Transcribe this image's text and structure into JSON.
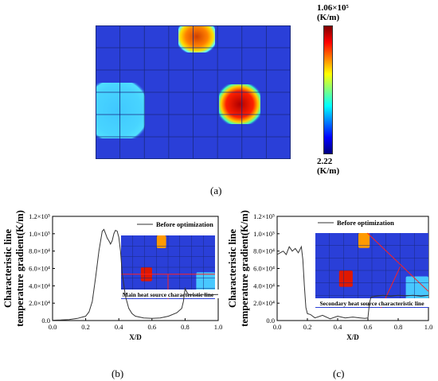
{
  "panels": {
    "a": {
      "label": "(a)"
    },
    "b": {
      "label": "(b)"
    },
    "c": {
      "label": "(c)"
    }
  },
  "colorbar": {
    "max_label": "1.06×10⁵",
    "min_label": "2.22",
    "unit": "(K/m)",
    "colors": [
      "#00007f",
      "#0000ff",
      "#007fff",
      "#00ffff",
      "#7fff7f",
      "#ffff00",
      "#ff7f00",
      "#ff0000",
      "#7f0000"
    ]
  },
  "heatmap": {
    "background": "#2a3fd8",
    "grid_color": "#1a2a80"
  },
  "chart_data": [
    {
      "type": "line",
      "panel": "b",
      "ylabel_line1": "Characteristic line",
      "ylabel_line2": "temperature gradient(K/m)",
      "xlabel": "X/D",
      "xlim": [
        0.0,
        1.0
      ],
      "ylim": [
        0,
        120000
      ],
      "xticks": [
        "0.0",
        "0.2",
        "0.4",
        "0.6",
        "0.8",
        "1.0"
      ],
      "yticks": [
        "0.0",
        "2.0×10⁴",
        "4.0×10⁴",
        "6.0×10⁴",
        "8.0×10⁴",
        "1.0×10⁵",
        "1.2×10⁵"
      ],
      "legend": "Before optimization",
      "inset_caption": "Main heat source characteristic line",
      "series": [
        {
          "name": "Before optimization",
          "x": [
            0.0,
            0.05,
            0.1,
            0.15,
            0.2,
            0.22,
            0.24,
            0.26,
            0.28,
            0.3,
            0.31,
            0.32,
            0.33,
            0.34,
            0.35,
            0.36,
            0.37,
            0.38,
            0.39,
            0.4,
            0.41,
            0.42,
            0.44,
            0.46,
            0.48,
            0.5,
            0.55,
            0.6,
            0.65,
            0.7,
            0.75,
            0.78,
            0.79,
            0.8,
            0.81,
            0.82,
            0.84,
            0.87,
            0.9,
            1.0
          ],
          "y": [
            400,
            600,
            1200,
            2500,
            5000,
            10000,
            22000,
            50000,
            80000,
            103000,
            105000,
            100000,
            95000,
            92000,
            88000,
            92000,
            100000,
            104000,
            103000,
            96000,
            80000,
            55000,
            28000,
            14000,
            8000,
            5000,
            3000,
            2500,
            3000,
            5000,
            9000,
            14000,
            22000,
            37000,
            33000,
            30000,
            29500,
            29000,
            29500,
            30000
          ]
        }
      ]
    },
    {
      "type": "line",
      "panel": "c",
      "ylabel_line1": "Characteristic line",
      "ylabel_line2": "temperature gradient(K/m)",
      "xlabel": "X/D",
      "xlim": [
        0.0,
        1.0
      ],
      "ylim": [
        0,
        120000
      ],
      "xticks": [
        "0.0",
        "0.2",
        "0.4",
        "0.6",
        "0.8",
        "1.0"
      ],
      "yticks": [
        "0.0",
        "2.0×10⁴",
        "4.0×10⁴",
        "6.0×10⁴",
        "8.0×10⁴",
        "1.0×10⁵",
        "1.2×10⁵"
      ],
      "legend": "Before optimization",
      "inset_caption": "Secondary heat source characteristic line",
      "series": [
        {
          "name": "Before optimization",
          "x": [
            0.0,
            0.02,
            0.04,
            0.06,
            0.08,
            0.1,
            0.12,
            0.14,
            0.16,
            0.17,
            0.18,
            0.19,
            0.2,
            0.22,
            0.25,
            0.3,
            0.35,
            0.4,
            0.45,
            0.5,
            0.55,
            0.58,
            0.6,
            0.61,
            0.62,
            0.65,
            0.7,
            0.75,
            0.8,
            0.85,
            0.9,
            0.95,
            1.0
          ],
          "y": [
            76000,
            78000,
            80000,
            76000,
            85000,
            80000,
            83000,
            78000,
            85000,
            70000,
            40000,
            15000,
            8000,
            7000,
            3000,
            6000,
            2000,
            5000,
            3000,
            4000,
            3000,
            2500,
            3000,
            20000,
            27000,
            28000,
            29000,
            28000,
            29000,
            28500,
            29000,
            28000,
            29000
          ]
        }
      ]
    }
  ]
}
